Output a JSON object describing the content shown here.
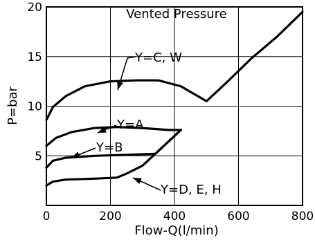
{
  "chart_data": {
    "type": "line",
    "title": "Vented Pressure",
    "xlabel": "Flow-Q(l/min)",
    "ylabel": "P=bar",
    "xlim": [
      0,
      800
    ],
    "ylim": [
      0,
      20
    ],
    "x_ticks": [
      0,
      200,
      400,
      600,
      800
    ],
    "y_ticks": [
      5,
      10,
      15,
      20
    ],
    "grid": true,
    "series": [
      {
        "name": "Y=C, W",
        "label": "Y=C, W",
        "x": [
          0,
          20,
          60,
          120,
          200,
          280,
          350,
          420,
          500,
          560,
          640,
          720,
          800
        ],
        "y": [
          8.6,
          9.9,
          11.0,
          12.0,
          12.5,
          12.6,
          12.6,
          12.0,
          10.5,
          12.3,
          14.8,
          17.0,
          19.5
        ]
      },
      {
        "name": "Y=A",
        "label": "Y=A",
        "x": [
          0,
          30,
          80,
          150,
          220,
          300,
          380,
          420
        ],
        "y": [
          6.0,
          6.8,
          7.4,
          7.8,
          7.9,
          7.8,
          7.6,
          7.6
        ]
      },
      {
        "name": "Y=B",
        "label": "Y=B",
        "x": [
          0,
          20,
          60,
          150,
          250,
          340,
          380,
          420
        ],
        "y": [
          3.8,
          4.5,
          4.8,
          5.0,
          5.1,
          5.2,
          6.4,
          7.6
        ]
      },
      {
        "name": "Y=D, E, H",
        "label": "Y=D, E, H",
        "x": [
          0,
          20,
          60,
          150,
          220,
          250,
          300,
          340,
          380,
          420
        ],
        "y": [
          2.0,
          2.4,
          2.6,
          2.7,
          2.8,
          3.2,
          4.0,
          5.2,
          6.4,
          7.6
        ]
      }
    ],
    "annotations": [
      {
        "text": "Y=C, W",
        "series": 0
      },
      {
        "text": "Y=A",
        "series": 1
      },
      {
        "text": "Y=B",
        "series": 2
      },
      {
        "text": "Y=D, E, H",
        "series": 3
      }
    ]
  }
}
